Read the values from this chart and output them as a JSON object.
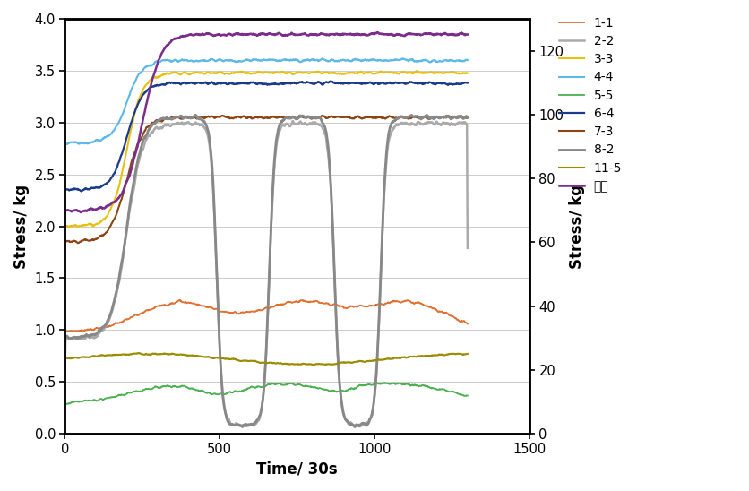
{
  "xlabel": "Time/ 30s",
  "ylabel_left": "Stress/ kg",
  "ylabel_right": "Stress/ kg",
  "xlim": [
    0,
    1500
  ],
  "ylim_left": [
    0.0,
    4.0
  ],
  "ylim_right": [
    0,
    130
  ],
  "xticks": [
    0,
    500,
    1000,
    1500
  ],
  "yticks_left": [
    0.0,
    0.5,
    1.0,
    1.5,
    2.0,
    2.5,
    3.0,
    3.5,
    4.0
  ],
  "yticks_right": [
    0,
    20,
    40,
    60,
    80,
    100,
    120
  ],
  "series_order": [
    "1-1",
    "2-2",
    "3-3",
    "4-4",
    "5-5",
    "6-4",
    "7-3",
    "8-2",
    "11-5",
    "总力"
  ],
  "series_colors": {
    "1-1": "#E07030",
    "2-2": "#AAAAAA",
    "3-3": "#E8C010",
    "4-4": "#5BB8E8",
    "5-5": "#4CAF50",
    "6-4": "#1A3A8A",
    "7-3": "#8B4513",
    "8-2": "#888888",
    "11-5": "#9B8B00",
    "总力": "#7B2D8B"
  },
  "series_lw": {
    "1-1": 1.3,
    "2-2": 1.8,
    "3-3": 1.5,
    "4-4": 1.5,
    "5-5": 1.3,
    "6-4": 1.6,
    "7-3": 1.5,
    "8-2": 2.0,
    "11-5": 1.5,
    "总力": 1.8
  },
  "background_color": "#ffffff",
  "grid_color": "#cccccc"
}
